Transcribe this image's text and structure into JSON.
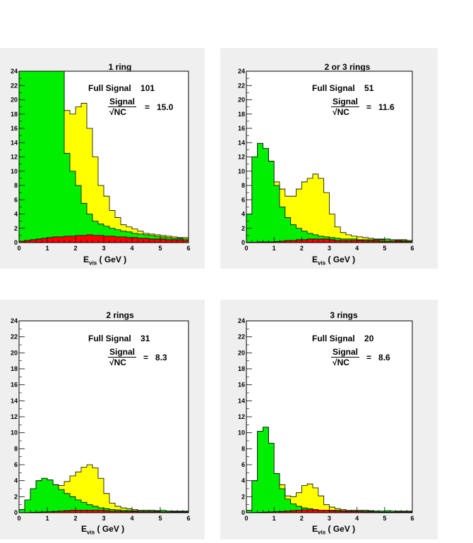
{
  "panels": [
    {
      "title": "1 ring",
      "full_signal_label": "Full Signal",
      "full_signal_value": "101",
      "ratio_num": "Signal",
      "ratio_den": "√NC",
      "ratio_eq": "=",
      "ratio_value": "15.0",
      "xlabel_main": "E",
      "xlabel_sub": "vis",
      "xlabel_unit": "( GeV )"
    },
    {
      "title": "2 or 3 rings",
      "full_signal_label": "Full Signal",
      "full_signal_value": "51",
      "ratio_num": "Signal",
      "ratio_den": "√NC",
      "ratio_eq": "=",
      "ratio_value": "11.6",
      "xlabel_main": "E",
      "xlabel_sub": "vis",
      "xlabel_unit": "( GeV )"
    },
    {
      "title": "2 rings",
      "full_signal_label": "Full Signal",
      "full_signal_value": "31",
      "ratio_num": "Signal",
      "ratio_den": "√NC",
      "ratio_eq": "=",
      "ratio_value": "8.3",
      "xlabel_main": "E",
      "xlabel_sub": "vis",
      "xlabel_unit": "( GeV )"
    },
    {
      "title": "3 rings",
      "full_signal_label": "Full Signal",
      "full_signal_value": "20",
      "ratio_num": "Signal",
      "ratio_den": "√NC",
      "ratio_eq": "=",
      "ratio_value": "8.6",
      "xlabel_main": "E",
      "xlabel_sub": "vis",
      "xlabel_unit": "( GeV )"
    }
  ],
  "colors": {
    "yellow": "#ffff00",
    "green": "#00ee00",
    "red": "#ff0000",
    "panel_bg": "#efefef"
  },
  "chart_data": [
    {
      "type": "area",
      "title": "1 ring",
      "x_bin_edges_start": 0,
      "x_bin_width": 0.2,
      "x_bins": 30,
      "xlim": [
        0,
        6
      ],
      "ylim": [
        0,
        24
      ],
      "x_ticks": [
        0,
        1,
        2,
        3,
        4,
        5,
        6
      ],
      "y_ticks": [
        0,
        2,
        4,
        6,
        8,
        10,
        12,
        14,
        16,
        18,
        20,
        22,
        24
      ],
      "series": [
        {
          "values": [
            24,
            24,
            24,
            24,
            24,
            24,
            24,
            24,
            18.5,
            18,
            19,
            19.5,
            16,
            12,
            8,
            6.5,
            4.5,
            3.5,
            2.5,
            2.2,
            1.9,
            1.6,
            1.3,
            1.2,
            1.1,
            1.0,
            0.9,
            0.8,
            0.7,
            0.7
          ]
        },
        {
          "values": [
            24,
            24,
            24,
            24,
            24,
            24,
            24,
            24,
            12.5,
            10,
            8,
            5.5,
            4,
            3,
            2.6,
            2.3,
            2,
            1.8,
            1.6,
            1.5,
            1.3,
            1.2,
            1.1,
            1.0,
            0.9,
            0.8,
            0.7,
            0.6,
            0.6,
            0.5
          ]
        },
        {
          "values": [
            0.2,
            0.3,
            0.4,
            0.5,
            0.6,
            0.7,
            0.8,
            0.8,
            0.9,
            0.9,
            1.0,
            1.0,
            1.1,
            1.0,
            1.0,
            0.9,
            0.9,
            0.8,
            0.8,
            0.7,
            0.7,
            0.6,
            0.6,
            0.5,
            0.5,
            0.5,
            0.4,
            0.4,
            0.4,
            0.3
          ]
        }
      ]
    },
    {
      "type": "area",
      "title": "2 or 3 rings",
      "x_bin_edges_start": 0,
      "x_bin_width": 0.2,
      "x_bins": 30,
      "xlim": [
        0,
        6
      ],
      "ylim": [
        0,
        24
      ],
      "x_ticks": [
        0,
        1,
        2,
        3,
        4,
        5,
        6
      ],
      "y_ticks": [
        0,
        2,
        4,
        6,
        8,
        10,
        12,
        14,
        16,
        18,
        20,
        22,
        24
      ],
      "series": [
        {
          "values": [
            4,
            12,
            13.9,
            13.2,
            11.4,
            8.5,
            7.5,
            6.5,
            6.5,
            7.5,
            8.5,
            9,
            9.6,
            9,
            7,
            4,
            2.2,
            1.4,
            1.1,
            0.9,
            0.8,
            0.7,
            0.6,
            0.5,
            0.5,
            0.5,
            0.4,
            0.4,
            0.4,
            0.3
          ]
        },
        {
          "values": [
            4,
            12,
            13.9,
            13.2,
            11.4,
            8,
            5,
            3.5,
            2.5,
            2,
            1.6,
            1.3,
            1.1,
            0.9,
            0.8,
            0.7,
            0.6,
            0.5,
            0.5,
            0.5,
            0.4,
            0.4,
            0.4,
            0.4,
            0.4,
            0.5,
            0.4,
            0.3,
            0.3,
            0.3
          ]
        },
        {
          "values": [
            0.05,
            0.05,
            0.1,
            0.1,
            0.1,
            0.15,
            0.2,
            0.3,
            0.3,
            0.4,
            0.4,
            0.5,
            0.5,
            0.5,
            0.5,
            0.4,
            0.3,
            0.3,
            0.3,
            0.3,
            0.3,
            0.25,
            0.25,
            0.25,
            0.2,
            0.2,
            0.2,
            0.2,
            0.15,
            0.15
          ]
        }
      ]
    },
    {
      "type": "area",
      "title": "2 rings",
      "x_bin_edges_start": 0,
      "x_bin_width": 0.2,
      "x_bins": 30,
      "xlim": [
        0,
        6
      ],
      "ylim": [
        0,
        24
      ],
      "x_ticks": [
        0,
        1,
        2,
        3,
        4,
        5,
        6
      ],
      "y_ticks": [
        0,
        2,
        4,
        6,
        8,
        10,
        12,
        14,
        16,
        18,
        20,
        22,
        24
      ],
      "series": [
        {
          "values": [
            0.4,
            1.6,
            3,
            4,
            4.3,
            4.1,
            3.5,
            3.4,
            3.9,
            4.6,
            5.1,
            5.7,
            6,
            5.6,
            4.3,
            2.4,
            1.2,
            0.8,
            0.6,
            0.5,
            0.4,
            0.3,
            0.3,
            0.3,
            0.25,
            0.25,
            0.2,
            0.2,
            0.2,
            0.2
          ]
        },
        {
          "values": [
            0.4,
            1.6,
            3,
            4,
            4.3,
            4.1,
            3.5,
            2.9,
            2.4,
            2.0,
            1.6,
            1.3,
            1.0,
            0.8,
            0.6,
            0.5,
            0.4,
            0.35,
            0.3,
            0.3,
            0.25,
            0.2,
            0.2,
            0.2,
            0.2,
            0.3,
            0.2,
            0.15,
            0.15,
            0.15
          ]
        },
        {
          "values": [
            0.02,
            0.03,
            0.05,
            0.07,
            0.1,
            0.12,
            0.15,
            0.2,
            0.25,
            0.3,
            0.3,
            0.3,
            0.3,
            0.3,
            0.3,
            0.25,
            0.2,
            0.2,
            0.15,
            0.15,
            0.15,
            0.1,
            0.1,
            0.1,
            0.1,
            0.1,
            0.1,
            0.08,
            0.08,
            0.06
          ]
        }
      ]
    },
    {
      "type": "area",
      "title": "3 rings",
      "x_bin_edges_start": 0,
      "x_bin_width": 0.2,
      "x_bins": 30,
      "xlim": [
        0,
        6
      ],
      "ylim": [
        0,
        24
      ],
      "x_ticks": [
        0,
        1,
        2,
        3,
        4,
        5,
        6
      ],
      "y_ticks": [
        0,
        2,
        4,
        6,
        8,
        10,
        12,
        14,
        16,
        18,
        20,
        22,
        24
      ],
      "series": [
        {
          "values": [
            0.3,
            4,
            10.2,
            10.7,
            8.7,
            4.9,
            3.5,
            2.1,
            2.0,
            2.5,
            3.4,
            3.6,
            3.1,
            2.1,
            1.0,
            0.7,
            0.5,
            0.4,
            0.3,
            0.3,
            0.3,
            0.3,
            0.25,
            0.2,
            0.2,
            0.2,
            0.2,
            0.2,
            0.2,
            0.2
          ]
        },
        {
          "values": [
            0.3,
            4,
            10.2,
            10.7,
            8.7,
            4.9,
            3.0,
            1.7,
            1.1,
            0.8,
            0.6,
            0.5,
            0.4,
            0.3,
            0.3,
            0.3,
            0.3,
            0.25,
            0.2,
            0.2,
            0.2,
            0.2,
            0.2,
            0.2,
            0.2,
            0.25,
            0.2,
            0.15,
            0.15,
            0.15
          ]
        },
        {
          "values": [
            0.02,
            0.03,
            0.05,
            0.07,
            0.1,
            0.12,
            0.15,
            0.2,
            0.25,
            0.3,
            0.35,
            0.35,
            0.35,
            0.3,
            0.3,
            0.25,
            0.2,
            0.2,
            0.15,
            0.15,
            0.12,
            0.1,
            0.1,
            0.1,
            0.08,
            0.08,
            0.07,
            0.06,
            0.05,
            0.05
          ]
        }
      ]
    }
  ]
}
